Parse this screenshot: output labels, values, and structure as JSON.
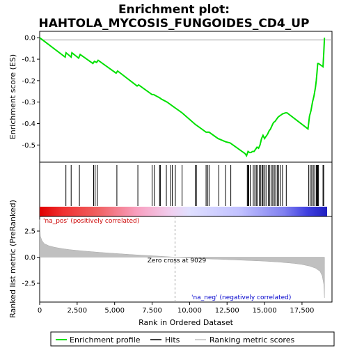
{
  "title_line1": "Enrichment plot:",
  "title_line2": "HAHTOLA_MYCOSIS_FUNGOIDES_CD4_UP",
  "colors": {
    "es_line": "#00e000",
    "hits": "#000000",
    "metric_fill": "#c0c0c0",
    "pos_label": "#cc0000",
    "neg_label": "#0000cc",
    "zero_line": "#a0a0a0",
    "frame": "#000000"
  },
  "labels": {
    "pos_annotation": "'na_pos' (positively correlated)",
    "neg_annotation": "'na_neg' (negatively correlated)",
    "zero_cross": "Zero cross at 9029"
  },
  "legend": {
    "items": [
      {
        "name": "Enrichment profile",
        "kind": "line-green"
      },
      {
        "name": "Hits",
        "kind": "line-black"
      },
      {
        "name": "Ranking metric scores",
        "kind": "line-gray"
      }
    ]
  },
  "chart_data": [
    {
      "type": "line",
      "panel": "enrichment-score",
      "ylabel": "Enrichment score (ES)",
      "xlim": [
        0,
        19500
      ],
      "ylim": [
        -0.58,
        0.03
      ],
      "yticks": [
        0.0,
        -0.1,
        -0.2,
        -0.3,
        -0.4,
        -0.5
      ],
      "ytick_labels": [
        "0.0",
        "-0.1",
        "-0.2",
        "-0.3",
        "-0.4",
        "-0.5"
      ],
      "grid": false,
      "series": [
        {
          "x": [
            0,
            1700,
            1760,
            2100,
            2150,
            2600,
            2700,
            3550,
            3650,
            3800,
            3900,
            5100,
            5200,
            6500,
            6600,
            7500,
            7600,
            8000,
            8100,
            8500,
            8700,
            8900,
            9100,
            9500,
            10400,
            10500,
            11100,
            11200,
            11300,
            11900,
            12400,
            12700,
            12800,
            13700,
            13800,
            13900,
            14000,
            14100,
            14200,
            14300,
            14400,
            14500,
            14600,
            14700,
            14800,
            14900,
            15000,
            15100,
            15200,
            15300,
            15400,
            15500,
            15600,
            15700,
            15800,
            15900,
            16000,
            16100,
            16200,
            16400,
            16500,
            17900,
            18000,
            18100,
            18200,
            18300,
            18400,
            18450,
            18500,
            18550,
            18600,
            18900,
            18950,
            19000
          ],
          "y": [
            0.0,
            -0.09,
            -0.07,
            -0.09,
            -0.07,
            -0.095,
            -0.078,
            -0.12,
            -0.11,
            -0.115,
            -0.105,
            -0.165,
            -0.155,
            -0.225,
            -0.22,
            -0.265,
            -0.265,
            -0.28,
            -0.285,
            -0.3,
            -0.31,
            -0.32,
            -0.33,
            -0.35,
            -0.405,
            -0.41,
            -0.44,
            -0.44,
            -0.44,
            -0.47,
            -0.485,
            -0.49,
            -0.495,
            -0.54,
            -0.55,
            -0.53,
            -0.535,
            -0.535,
            -0.53,
            -0.53,
            -0.52,
            -0.51,
            -0.515,
            -0.5,
            -0.47,
            -0.455,
            -0.47,
            -0.46,
            -0.45,
            -0.435,
            -0.425,
            -0.41,
            -0.395,
            -0.39,
            -0.38,
            -0.37,
            -0.365,
            -0.36,
            -0.355,
            -0.35,
            -0.35,
            -0.425,
            -0.365,
            -0.34,
            -0.3,
            -0.27,
            -0.23,
            -0.2,
            -0.16,
            -0.12,
            -0.12,
            -0.135,
            -0.07,
            0.0
          ]
        }
      ]
    },
    {
      "type": "scatter",
      "panel": "hits",
      "xlim": [
        0,
        19500
      ],
      "hit_positions": [
        1750,
        2100,
        2650,
        3600,
        3700,
        3850,
        5150,
        6550,
        7500,
        7650,
        8000,
        8050,
        8450,
        8750,
        8850,
        9050,
        9500,
        10400,
        10450,
        11100,
        11200,
        11300,
        11950,
        12400,
        12750,
        13850,
        13900,
        13950,
        14050,
        14250,
        14350,
        14450,
        14550,
        14650,
        14750,
        14850,
        14900,
        15000,
        15100,
        15250,
        15350,
        15450,
        15550,
        15650,
        15750,
        15850,
        15950,
        16050,
        16200,
        16450,
        17950,
        18050,
        18150,
        18250,
        18350,
        18450,
        18500,
        18550,
        18600,
        18900,
        18950
      ]
    },
    {
      "type": "area",
      "panel": "ranked-list-metric",
      "xlabel": "Rank in Ordered Dataset",
      "ylabel": "Ranked list metric (PreRanked)",
      "xlim": [
        0,
        19500
      ],
      "ylim": [
        -4.3,
        3.9
      ],
      "xticks": [
        0,
        2500,
        5000,
        7500,
        10000,
        12500,
        15000,
        17500
      ],
      "xtick_labels": [
        "0",
        "2,500",
        "5,000",
        "7,500",
        "10,000",
        "12,500",
        "15,000",
        "17,500"
      ],
      "yticks": [
        2.5,
        0.0,
        -2.5
      ],
      "ytick_labels": [
        "2.5",
        "0.0",
        "-2.5"
      ],
      "zero_cross": 9029,
      "x": [
        0,
        50,
        150,
        300,
        600,
        1000,
        1500,
        2000,
        3000,
        4000,
        5000,
        6000,
        7000,
        8000,
        9029,
        10000,
        11000,
        12000,
        13000,
        14000,
        15000,
        16000,
        17000,
        17500,
        18000,
        18400,
        18700,
        18850,
        18950,
        19000
      ],
      "values": [
        3.6,
        2.0,
        1.6,
        1.3,
        1.1,
        0.95,
        0.82,
        0.72,
        0.58,
        0.46,
        0.36,
        0.26,
        0.17,
        0.09,
        0.0,
        -0.08,
        -0.15,
        -0.2,
        -0.26,
        -0.32,
        -0.38,
        -0.47,
        -0.6,
        -0.7,
        -0.85,
        -1.05,
        -1.35,
        -1.8,
        -2.6,
        -3.9
      ]
    }
  ]
}
